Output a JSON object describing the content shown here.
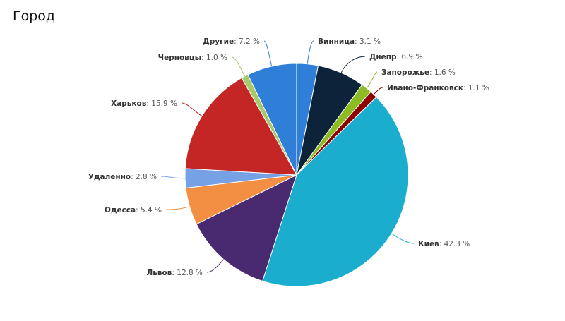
{
  "chart_data": {
    "type": "pie",
    "title": "Город",
    "unit": "%",
    "slices": [
      {
        "name": "Винница",
        "value": 3.1,
        "color": "#2f7ed8"
      },
      {
        "name": "Днепр",
        "value": 6.9,
        "color": "#0d233a"
      },
      {
        "name": "Запорожье",
        "value": 1.6,
        "color": "#8bbc21"
      },
      {
        "name": "Ивано-Франковск",
        "value": 1.1,
        "color": "#910000"
      },
      {
        "name": "Киев",
        "value": 42.3,
        "color": "#1aadce"
      },
      {
        "name": "Львов",
        "value": 12.8,
        "color": "#492970"
      },
      {
        "name": "Одесса",
        "value": 5.4,
        "color": "#f28f43"
      },
      {
        "name": "Удаленно",
        "value": 2.8,
        "color": "#77a1e5"
      },
      {
        "name": "Харьков",
        "value": 15.9,
        "color": "#c42525"
      },
      {
        "name": "Черновцы",
        "value": 1.0,
        "color": "#a6c96a"
      },
      {
        "name": "Другие",
        "value": 7.2,
        "color": "#2f7ed8"
      }
    ]
  }
}
